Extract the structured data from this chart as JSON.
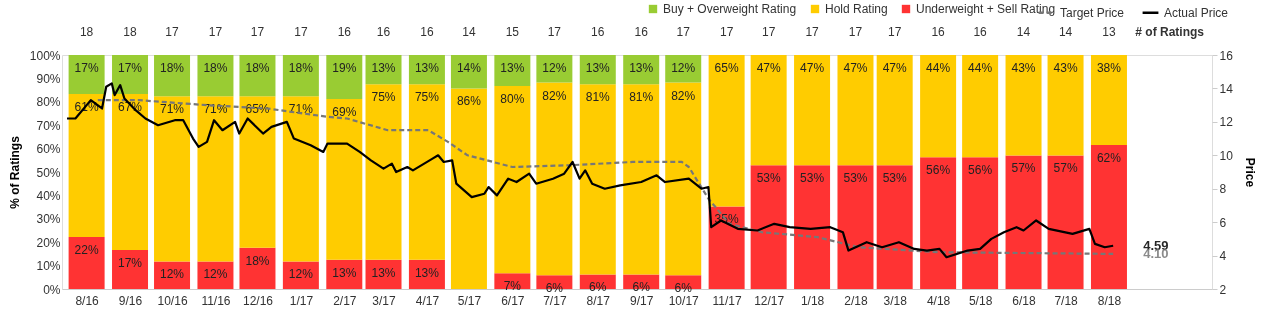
{
  "chart_data": {
    "type": "bar",
    "stacked": true,
    "legend": "top right",
    "grid": false,
    "x": [
      "2016-08-15",
      "2016-09-15",
      "2016-10-15",
      "2016-11-15",
      "2016-12-15",
      "2017-01-15",
      "2017-02-15",
      "2017-03-15",
      "2017-04-15",
      "2017-05-15",
      "2017-06-15",
      "2017-07-15",
      "2017-08-15",
      "2017-09-15",
      "2017-10-15",
      "2017-11-15",
      "2017-12-15",
      "2018-01-15",
      "2018-02-15",
      "2018-03-15",
      "2018-04-15",
      "2018-05-15",
      "2018-06-15",
      "2018-07-15",
      "2018-08-15"
    ],
    "xlim": [
      "2016-08-01",
      "2018-10-24"
    ],
    "xticks": [
      {
        "value": "2016-08-15",
        "label": "8/16"
      },
      {
        "value": "2016-09-15",
        "label": "9/16"
      },
      {
        "value": "2016-10-15",
        "label": "10/16"
      },
      {
        "value": "2016-11-15",
        "label": "11/16"
      },
      {
        "value": "2016-12-15",
        "label": "12/16"
      },
      {
        "value": "2017-01-15",
        "label": "1/17"
      },
      {
        "value": "2017-02-15",
        "label": "2/17"
      },
      {
        "value": "2017-03-15",
        "label": "3/17"
      },
      {
        "value": "2017-04-15",
        "label": "4/17"
      },
      {
        "value": "2017-05-15",
        "label": "5/17"
      },
      {
        "value": "2017-06-15",
        "label": "6/17"
      },
      {
        "value": "2017-07-15",
        "label": "7/17"
      },
      {
        "value": "2017-08-15",
        "label": "8/17"
      },
      {
        "value": "2017-09-15",
        "label": "9/17"
      },
      {
        "value": "2017-10-15",
        "label": "10/17"
      },
      {
        "value": "2017-11-15",
        "label": "11/17"
      },
      {
        "value": "2017-12-15",
        "label": "12/17"
      },
      {
        "value": "2018-01-15",
        "label": "1/18"
      },
      {
        "value": "2018-02-15",
        "label": "2/18"
      },
      {
        "value": "2018-03-15",
        "label": "3/18"
      },
      {
        "value": "2018-04-15",
        "label": "4/18"
      },
      {
        "value": "2018-05-15",
        "label": "5/18"
      },
      {
        "value": "2018-06-15",
        "label": "6/18"
      },
      {
        "value": "2018-07-15",
        "label": "7/18"
      },
      {
        "value": "2018-08-15",
        "label": "8/18"
      }
    ],
    "ylabel": "% of Ratings",
    "ylim": [
      0,
      100
    ],
    "yticks": [
      {
        "value": 0,
        "label": "0%"
      },
      {
        "value": 10,
        "label": "10%"
      },
      {
        "value": 20,
        "label": "20%"
      },
      {
        "value": 30,
        "label": "30%"
      },
      {
        "value": 40,
        "label": "40%"
      },
      {
        "value": 50,
        "label": "50%"
      },
      {
        "value": 60,
        "label": "60%"
      },
      {
        "value": 70,
        "label": "70%"
      },
      {
        "value": 80,
        "label": "80%"
      },
      {
        "value": 90,
        "label": "90%"
      },
      {
        "value": 100,
        "label": "100%"
      }
    ],
    "y2label": "Price",
    "y2lim": [
      2,
      16
    ],
    "y2ticks": [
      2,
      4,
      6,
      8,
      10,
      12,
      14,
      16
    ],
    "series": [
      {
        "name": "Underweight + Sell Rating",
        "color": "#ff3333",
        "values": [
          22.2,
          16.7,
          11.8,
          11.8,
          17.6,
          11.8,
          12.5,
          12.5,
          12.5,
          null,
          6.7,
          5.9,
          6.2,
          6.2,
          5.9,
          35.3,
          52.9,
          52.9,
          52.9,
          52.9,
          56.3,
          56.3,
          57.1,
          57.1,
          61.5
        ],
        "value_labels": [
          "22%",
          "17%",
          "12%",
          "12%",
          "18%",
          "12%",
          "13%",
          "13%",
          "13%",
          null,
          "7%",
          "6%",
          "6%",
          "6%",
          "6%",
          "35%",
          "53%",
          "53%",
          "53%",
          "53%",
          "56%",
          "56%",
          "57%",
          "57%",
          "62%"
        ]
      },
      {
        "name": "Hold Rating",
        "color": "#ffcc00",
        "values": [
          61.1,
          66.6,
          70.6,
          70.6,
          64.8,
          70.6,
          68.7,
          75,
          75,
          85.7,
          80,
          82.3,
          81.3,
          81.3,
          82.3,
          64.7,
          47.1,
          47.1,
          47.1,
          47.1,
          43.7,
          43.7,
          42.9,
          42.9,
          38.5
        ],
        "value_labels": [
          "61%",
          "67%",
          "71%",
          "71%",
          "65%",
          "71%",
          "69%",
          "75%",
          "75%",
          "86%",
          "80%",
          "82%",
          "81%",
          "81%",
          "82%",
          "65%",
          "47%",
          "47%",
          "47%",
          "47%",
          "44%",
          "44%",
          "43%",
          "43%",
          "38%"
        ]
      },
      {
        "name": "Buy + Overweight Rating",
        "color": "#99cc33",
        "values": [
          16.7,
          16.7,
          17.6,
          17.6,
          17.6,
          17.6,
          18.8,
          12.5,
          12.5,
          14.3,
          13.3,
          11.8,
          12.5,
          12.5,
          11.8,
          null,
          null,
          null,
          null,
          null,
          null,
          null,
          null,
          null,
          null
        ],
        "value_labels": [
          "17%",
          "17%",
          "18%",
          "18%",
          "18%",
          "18%",
          "19%",
          "13%",
          "13%",
          "14%",
          "13%",
          "12%",
          "13%",
          "13%",
          "12%",
          null,
          null,
          null,
          null,
          null,
          null,
          null,
          null,
          null,
          null
        ]
      },
      {
        "name": "Target Price",
        "color": "#777777",
        "type": "line",
        "axis": "y2",
        "line_style": "dashed",
        "x": [
          "2016-08-23",
          "2016-09-21",
          "2016-11-09",
          "2016-12-22",
          "2017-02-03",
          "2017-02-17",
          "2017-03-18",
          "2017-04-16",
          "2017-04-30",
          "2017-05-14",
          "2017-06-15",
          "2017-07-25",
          "2017-09-09",
          "2017-10-14",
          "2017-10-19",
          "2017-11-02",
          "2017-11-17",
          "2017-12-10",
          "2018-01-19",
          "2018-02-17",
          "2018-04-16",
          "2018-08-18"
        ],
        "values": [
          13.3,
          13.3,
          13.0,
          12.8,
          12.3,
          12.2,
          11.5,
          11.5,
          10.8,
          10.0,
          9.3,
          9.4,
          9.6,
          9.6,
          9.3,
          7.4,
          5.9,
          5.4,
          5.1,
          4.5,
          4.2,
          4.1
        ]
      },
      {
        "name": "Actual Price",
        "color": "#000000",
        "type": "line",
        "axis": "y2",
        "line_style": "solid",
        "x": [
          "2016-08-01",
          "2016-08-07",
          "2016-08-18",
          "2016-08-26",
          "2016-08-29",
          "2016-09-02",
          "2016-09-04",
          "2016-09-08",
          "2016-09-11",
          "2016-09-19",
          "2016-09-26",
          "2016-10-05",
          "2016-10-17",
          "2016-10-23",
          "2016-10-30",
          "2016-11-03",
          "2016-11-09",
          "2016-11-14",
          "2016-11-20",
          "2016-11-29",
          "2016-12-02",
          "2016-12-08",
          "2016-12-19",
          "2016-12-25",
          "2017-01-05",
          "2017-01-10",
          "2017-01-22",
          "2017-01-31",
          "2017-02-03",
          "2017-02-17",
          "2017-02-26",
          "2017-03-06",
          "2017-03-15",
          "2017-03-21",
          "2017-03-24",
          "2017-04-01",
          "2017-04-05",
          "2017-04-19",
          "2017-04-23",
          "2017-04-27",
          "2017-05-03",
          "2017-05-06",
          "2017-05-17",
          "2017-05-26",
          "2017-05-29",
          "2017-06-04",
          "2017-06-12",
          "2017-06-18",
          "2017-06-27",
          "2017-07-02",
          "2017-07-14",
          "2017-07-22",
          "2017-07-28",
          "2017-08-02",
          "2017-08-06",
          "2017-08-11",
          "2017-08-20",
          "2017-08-31",
          "2017-09-15",
          "2017-09-26",
          "2017-10-02",
          "2017-10-19",
          "2017-10-28",
          "2017-11-02",
          "2017-11-04",
          "2017-11-11",
          "2017-11-23",
          "2017-12-07",
          "2017-12-19",
          "2017-12-30",
          "2018-01-14",
          "2018-01-28",
          "2018-02-06",
          "2018-02-10",
          "2018-02-23",
          "2018-03-06",
          "2018-03-18",
          "2018-03-29",
          "2018-04-07",
          "2018-04-16",
          "2018-04-21",
          "2018-05-06",
          "2018-05-15",
          "2018-05-23",
          "2018-06-01",
          "2018-06-10",
          "2018-06-15",
          "2018-06-24",
          "2018-07-03",
          "2018-07-20",
          "2018-08-01",
          "2018-08-05",
          "2018-08-12",
          "2018-08-18"
        ],
        "values": [
          12.2,
          12.2,
          13.3,
          12.8,
          14.1,
          14.3,
          13.6,
          14.2,
          13.4,
          12.7,
          12.2,
          11.8,
          12.1,
          12.1,
          11.0,
          10.5,
          10.8,
          12.1,
          11.5,
          12.0,
          11.3,
          12.2,
          11.3,
          11.7,
          12.0,
          11.0,
          10.6,
          10.2,
          10.7,
          10.7,
          10.2,
          9.7,
          9.2,
          9.5,
          9.0,
          9.3,
          9.1,
          9.8,
          10.0,
          9.6,
          9.7,
          8.3,
          7.5,
          7.7,
          8.1,
          7.6,
          8.6,
          8.4,
          8.9,
          8.3,
          8.6,
          8.9,
          9.6,
          8.6,
          9.1,
          8.3,
          8.0,
          8.2,
          8.4,
          8.8,
          8.4,
          8.6,
          8.0,
          8.1,
          5.7,
          6.1,
          5.6,
          5.5,
          5.9,
          5.7,
          5.6,
          5.7,
          5.4,
          4.3,
          4.8,
          4.5,
          4.8,
          4.4,
          4.3,
          4.4,
          3.9,
          4.3,
          4.4,
          5.0,
          5.4,
          5.7,
          5.5,
          6.1,
          5.6,
          5.3,
          5.6,
          4.7,
          4.5,
          4.59
        ]
      }
    ],
    "annotations": [
      "18",
      "18",
      "17",
      "17",
      "17",
      "17",
      "16",
      "16",
      "16",
      "14",
      "15",
      "17",
      "16",
      "16",
      "17",
      "17",
      "17",
      "17",
      "17",
      "17",
      "16",
      "16",
      "14",
      "14",
      "13",
      "# of Ratings",
      "4.59",
      "4.10"
    ]
  }
}
